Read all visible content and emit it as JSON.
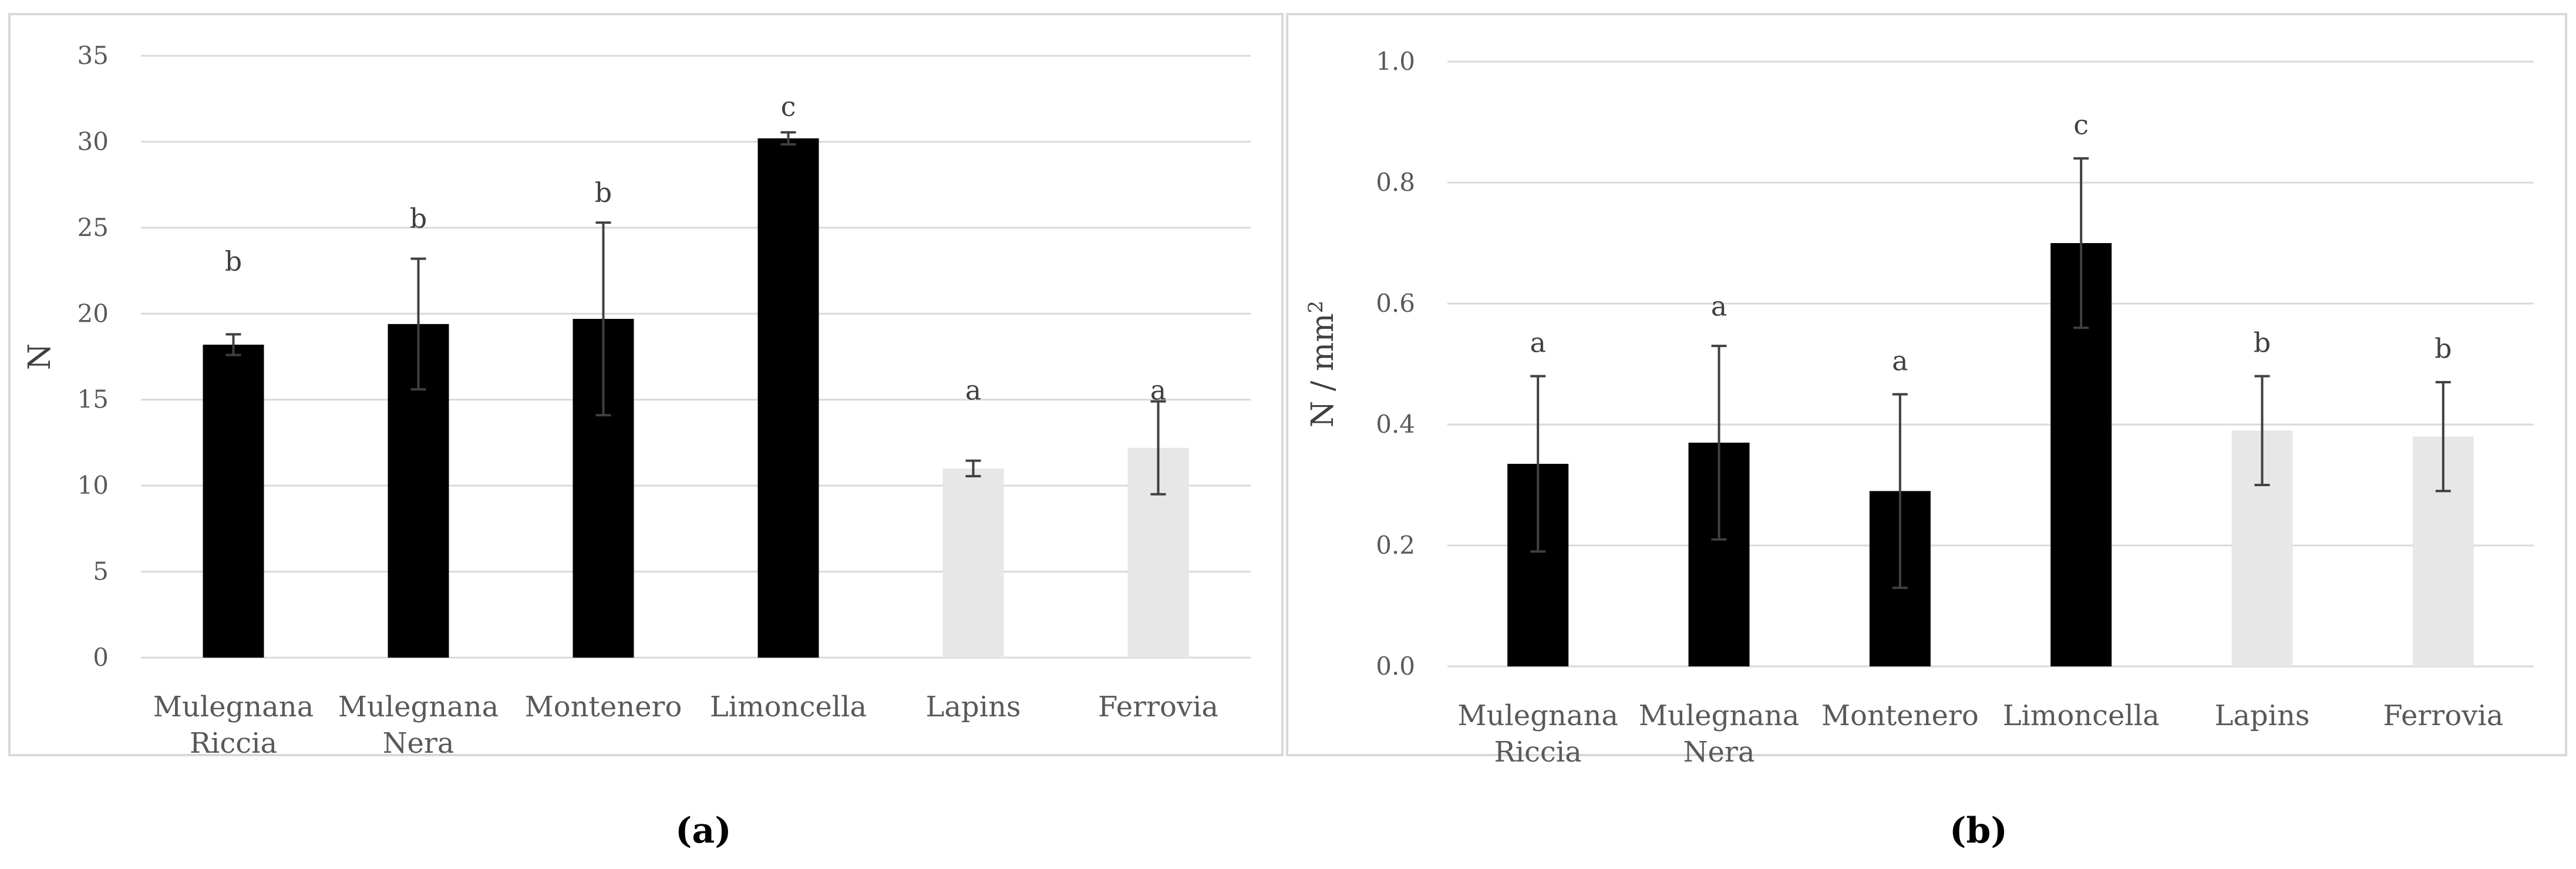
{
  "colors": {
    "dark_bar": "#000000",
    "light_bar": "#e7e7e7",
    "grid": "#d9d9d9",
    "error": "#404040"
  },
  "chart_data": [
    {
      "type": "bar",
      "panel": "a",
      "caption": "(a)",
      "ylabel": "N",
      "ylabel_sup": "",
      "ylim": [
        0,
        35
      ],
      "yticks": [
        0,
        5,
        10,
        15,
        20,
        25,
        30,
        35
      ],
      "ytick_labels": [
        "0",
        "5",
        "10",
        "15",
        "20",
        "25",
        "30",
        "35"
      ],
      "grid": true,
      "categories": [
        [
          "Mulegnana",
          "Riccia"
        ],
        [
          "Mulegnana",
          "Nera"
        ],
        [
          "Montenero"
        ],
        [
          "Limoncella"
        ],
        [
          "Lapins"
        ],
        [
          "Ferrovia"
        ]
      ],
      "values": [
        18.2,
        19.4,
        19.7,
        30.2,
        11.0,
        12.2
      ],
      "errors": [
        0.6,
        3.8,
        5.6,
        0.35,
        0.45,
        2.7
      ],
      "bar_colors": [
        "dark",
        "dark",
        "dark",
        "dark",
        "light",
        "light"
      ],
      "significance": [
        "b",
        "b",
        "b",
        "c",
        "a",
        "a"
      ],
      "significance_y": [
        22.5,
        25.0,
        26.5,
        31.5,
        15.0,
        15.0
      ]
    },
    {
      "type": "bar",
      "panel": "b",
      "caption": "(b)",
      "ylabel": "N / mm",
      "ylabel_sup": "2",
      "ylim": [
        0,
        1.0
      ],
      "yticks": [
        0,
        0.2,
        0.4,
        0.6,
        0.8,
        1.0
      ],
      "ytick_labels": [
        "0.0",
        "0.2",
        "0.4",
        "0.6",
        "0.8",
        "1.0"
      ],
      "grid": true,
      "categories": [
        [
          "Mulegnana",
          "Riccia"
        ],
        [
          "Mulegnana",
          "Nera"
        ],
        [
          "Montenero"
        ],
        [
          "Limoncella"
        ],
        [
          "Lapins"
        ],
        [
          "Ferrovia"
        ]
      ],
      "values": [
        0.335,
        0.37,
        0.29,
        0.7,
        0.39,
        0.38
      ],
      "errors": [
        0.145,
        0.16,
        0.16,
        0.14,
        0.09,
        0.09
      ],
      "bar_colors": [
        "dark",
        "dark",
        "dark",
        "dark",
        "light",
        "light"
      ],
      "significance": [
        "a",
        "a",
        "a",
        "c",
        "b",
        "b"
      ],
      "significance_y": [
        0.52,
        0.58,
        0.49,
        0.88,
        0.52,
        0.51
      ]
    }
  ]
}
